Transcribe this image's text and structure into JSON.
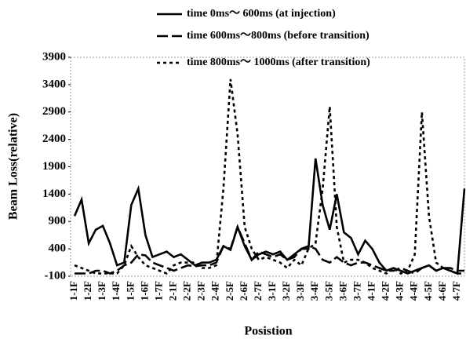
{
  "chart_data": {
    "type": "line",
    "xlabel": "Posistion",
    "ylabel": "Beam Loss(relative)",
    "categories": [
      "1-1F",
      null,
      "1-2F",
      null,
      "1-3F",
      null,
      "1-4F",
      null,
      "1-5F",
      null,
      "1-6F",
      null,
      "1-7F",
      null,
      "2-1F",
      null,
      "2-2F",
      null,
      "2-3F",
      null,
      "2-4F",
      null,
      "2-5F",
      null,
      "2-6F",
      null,
      "2-7F",
      null,
      "3-1F",
      null,
      "3-2F",
      null,
      "3-3F",
      null,
      "3-4F",
      null,
      "3-5F",
      null,
      "3-6F",
      null,
      "3-7F",
      null,
      "4-1F",
      null,
      "4-2F",
      null,
      "4-3F",
      null,
      "4-4F",
      null,
      "4-5F",
      null,
      "4-6F",
      null,
      "4-7F",
      null
    ],
    "series": [
      {
        "name": "time 0ms～ 600ms (at injection)",
        "color": "#000000",
        "dash": "solid",
        "values": [
          1000,
          1300,
          500,
          750,
          820,
          500,
          100,
          150,
          1200,
          1500,
          650,
          250,
          300,
          350,
          250,
          300,
          200,
          100,
          150,
          150,
          200,
          450,
          380,
          800,
          450,
          200,
          300,
          350,
          300,
          350,
          200,
          300,
          400,
          400,
          2050,
          1200,
          750,
          1400,
          700,
          600,
          300,
          550,
          400,
          150,
          0,
          50,
          0,
          -50,
          0,
          50,
          100,
          0,
          50,
          0,
          -50,
          1500
        ]
      },
      {
        "name": "time 600ms～800ms (before transition)",
        "color": "#000000",
        "dash": "dashed",
        "values": [
          -50,
          -50,
          -50,
          0,
          0,
          -50,
          0,
          100,
          150,
          300,
          280,
          150,
          100,
          50,
          0,
          50,
          100,
          80,
          100,
          100,
          150,
          450,
          400,
          800,
          500,
          200,
          350,
          300,
          250,
          300,
          200,
          250,
          400,
          450,
          400,
          200,
          150,
          250,
          150,
          100,
          150,
          150,
          100,
          50,
          0,
          0,
          50,
          0,
          -50,
          50,
          100,
          0,
          50,
          50,
          0,
          0
        ]
      },
      {
        "name": "time 800ms～ 1000ms (after transition)",
        "color": "#000000",
        "dash": "dotted",
        "values": [
          100,
          50,
          0,
          -50,
          -50,
          -50,
          -50,
          100,
          450,
          250,
          100,
          50,
          0,
          -50,
          100,
          150,
          150,
          150,
          50,
          50,
          100,
          1500,
          3500,
          2500,
          800,
          400,
          200,
          250,
          200,
          150,
          50,
          200,
          100,
          400,
          500,
          1500,
          3000,
          800,
          150,
          200,
          200,
          150,
          50,
          0,
          -50,
          50,
          -50,
          0,
          300,
          2900,
          1000,
          150,
          50,
          0,
          -50,
          -50
        ]
      }
    ],
    "ylim": [
      -100,
      3900
    ],
    "yticks": [
      -100,
      400,
      900,
      1400,
      1900,
      2400,
      2900,
      3400,
      3900
    ]
  }
}
